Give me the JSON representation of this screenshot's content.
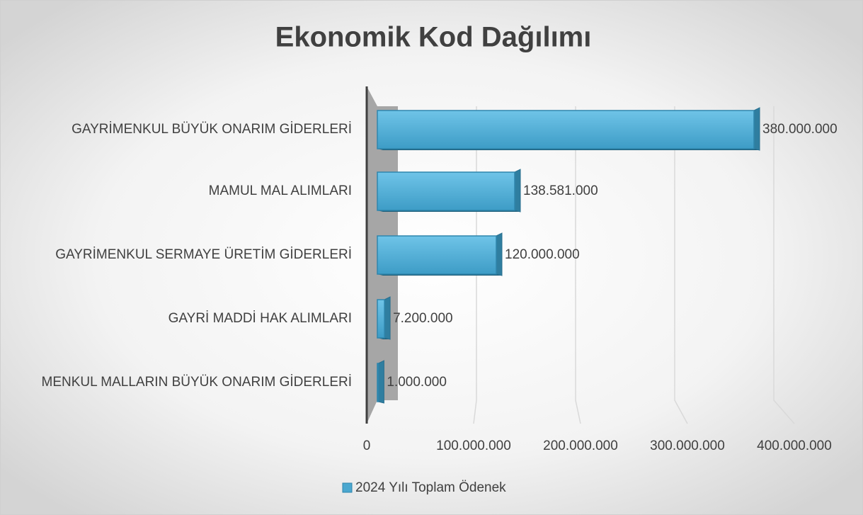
{
  "chart_data": {
    "type": "bar3d_horizontal",
    "title": "Ekonomik Kod Dağılımı",
    "categories": [
      "GAYRİMENKUL BÜYÜK ONARIM GİDERLERİ",
      "MAMUL MAL ALIMLARI",
      "GAYRİMENKUL SERMAYE ÜRETİM GİDERLERİ",
      "GAYRİ MADDİ HAK ALIMLARI",
      "MENKUL MALLARIN BÜYÜK ONARIM GİDERLERİ"
    ],
    "series": [
      {
        "name": "2024 Yılı Toplam Ödenek",
        "color": "#4aa7cf",
        "values": [
          380000000,
          138581000,
          120000000,
          7200000,
          1000000
        ],
        "value_labels": [
          "380.000.000",
          "138.581.000",
          "120.000.000",
          "7.200.000",
          "1.000.000"
        ]
      }
    ],
    "xlim": [
      0,
      400000000
    ],
    "xticks": [
      0,
      {
        "value": 100000000,
        "label": "100.000.000"
      },
      {
        "value": 200000000,
        "label": "200.000.000"
      },
      {
        "value": 300000000,
        "label": "300.000.000"
      },
      {
        "value": 400000000,
        "label": "400.000.000"
      }
    ],
    "grid": true,
    "legend": "bottom"
  }
}
